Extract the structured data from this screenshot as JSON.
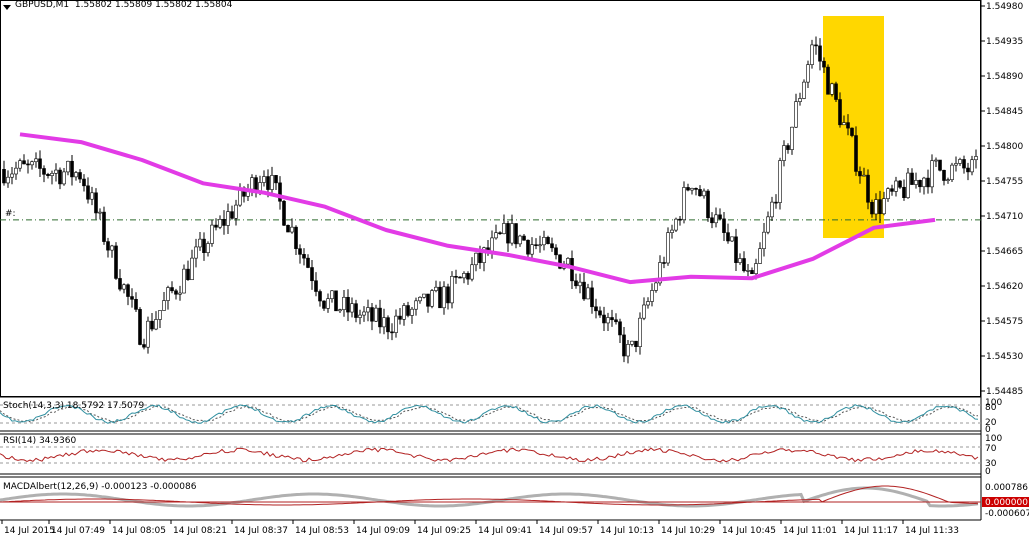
{
  "main_header": {
    "symbol_label": "GBPUSD,M1",
    "quote": "1.55802 1.55809 1.55802 1.55804"
  },
  "price_axis": [
    "1.54980",
    "1.54935",
    "1.54890",
    "1.54845",
    "1.54800",
    "1.54755",
    "1.54710",
    "1.54665",
    "1.54620",
    "1.54575",
    "1.54530",
    "1.54485"
  ],
  "time_axis": [
    "14 Jul 2015",
    "14 Jul 07:49",
    "14 Jul 08:05",
    "14 Jul 08:21",
    "14 Jul 08:37",
    "14 Jul 08:53",
    "14 Jul 09:09",
    "14 Jul 09:25",
    "14 Jul 09:41",
    "14 Jul 09:57",
    "14 Jul 10:13",
    "14 Jul 10:29",
    "14 Jul 10:45",
    "14 Jul 11:01",
    "14 Jul 11:17",
    "14 Jul 11:33"
  ],
  "hline_label": "#:",
  "stoch": {
    "label": "Stoch(14,3,3) 18.5792 17.5079",
    "levels": [
      "100",
      "80",
      "20",
      "0"
    ]
  },
  "rsi": {
    "label": "RSI(14) 34.9360",
    "levels": [
      "100",
      "70",
      "30",
      "0"
    ]
  },
  "macd": {
    "label": "MACDAlbert(12,26,9) -0.000123 -0.000086",
    "levels": [
      "0.000786",
      "0.000000",
      "-0.000607"
    ]
  },
  "colors": {
    "ma": "#e23be6",
    "highlight": "#ffd700",
    "hline": "#2e6b2e",
    "rsi_line": "#b22222",
    "stoch_main": "#2f8fa0",
    "stoch_signal": "#555555",
    "macd_line": "#b22222",
    "macd_hist": "#b0b0b0"
  },
  "chart_data": [
    {
      "type": "candlestick",
      "symbol": "GBPUSD",
      "timeframe": "M1",
      "ylim": [
        1.54485,
        1.5499
      ],
      "highlight_region": {
        "x_start": "14 Jul 11:01",
        "x_end": "14 Jul 11:17"
      },
      "horizontal_line": 1.54705,
      "ma_line": {
        "x": [
          "14 Jul 2015",
          "14 Jul 07:49",
          "14 Jul 08:05",
          "14 Jul 08:21",
          "14 Jul 08:37",
          "14 Jul 08:53",
          "14 Jul 09:09",
          "14 Jul 09:25",
          "14 Jul 09:41",
          "14 Jul 09:57",
          "14 Jul 10:13",
          "14 Jul 10:29",
          "14 Jul 10:45",
          "14 Jul 11:01",
          "14 Jul 11:17",
          "14 Jul 11:33"
        ],
        "y": [
          1.54815,
          1.54805,
          1.54782,
          1.54752,
          1.5474,
          1.54722,
          1.54692,
          1.54672,
          1.5466,
          1.54645,
          1.54625,
          1.54632,
          1.5463,
          1.54655,
          1.54695,
          1.54705
        ]
      },
      "path_anchors": {
        "x": [
          "14 Jul 2015",
          "14 Jul 07:49",
          "14 Jul 08:05",
          "14 Jul 08:21",
          "14 Jul 08:37",
          "14 Jul 08:53",
          "14 Jul 09:09",
          "14 Jul 09:25",
          "14 Jul 09:41",
          "14 Jul 09:57",
          "14 Jul 10:13",
          "14 Jul 10:29",
          "14 Jul 10:45",
          "14 Jul 11:01",
          "14 Jul 11:17",
          "14 Jul 11:33"
        ],
        "y": [
          1.5477,
          1.54765,
          1.54555,
          1.5467,
          1.5477,
          1.546,
          1.5457,
          1.5461,
          1.5469,
          1.5465,
          1.5453,
          1.5476,
          1.5462,
          1.54935,
          1.5472,
          1.5477
        ]
      }
    },
    {
      "type": "line",
      "title": "Stoch(14,3,3)",
      "ylim": [
        0,
        100
      ],
      "levels": [
        20,
        80
      ]
    },
    {
      "type": "line",
      "title": "RSI(14)",
      "ylim": [
        0,
        100
      ],
      "levels": [
        30,
        70
      ]
    },
    {
      "type": "bar",
      "title": "MACDAlbert(12,26,9)",
      "ylim": [
        -0.000607,
        0.000786
      ],
      "level": 0.0
    }
  ]
}
